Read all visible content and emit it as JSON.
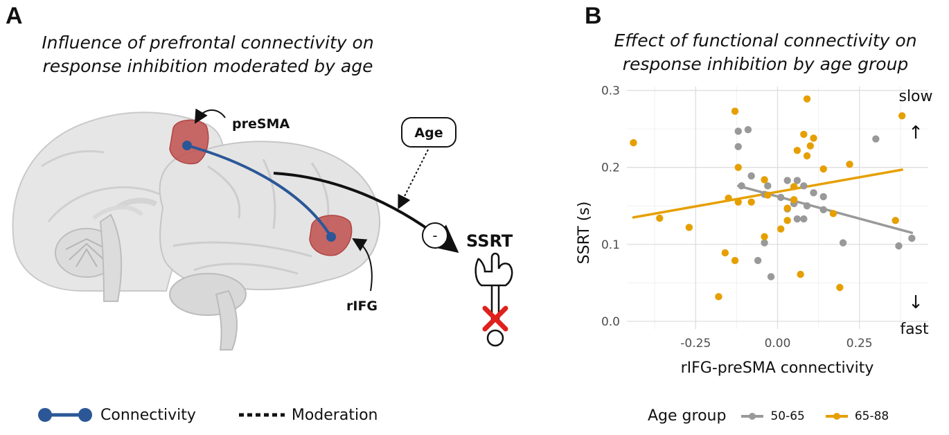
{
  "panel_a": {
    "letter": "A",
    "title_line1": "Influence of prefrontal connectivity on",
    "title_line2": "response inhibition moderated by age",
    "labels": {
      "presma": "preSMA",
      "rifg": "rIFG",
      "age": "Age",
      "ssrt": "SSRT",
      "minus": "-"
    },
    "legend": {
      "connectivity": "Connectivity",
      "moderation": "Moderation"
    },
    "colors": {
      "connectivity": "#2b5797",
      "region": "#c0504d",
      "brain": "#e3e3e3",
      "stop": "#e0201c"
    }
  },
  "panel_b": {
    "letter": "B",
    "title_line1": "Effect of functional connectivity on",
    "title_line2": "response inhibition by age group",
    "annot_slow": "slow",
    "annot_fast": "fast",
    "arrow_up": "↑",
    "arrow_down": "↓",
    "legend_title": "Age group",
    "legend_items": [
      "50-65",
      "65-88"
    ]
  },
  "chart_data": {
    "type": "scatter",
    "title": "Effect of functional connectivity on response inhibition by age group",
    "xlabel": "rIFG-preSMA connectivity",
    "ylabel": "SSRT (s)",
    "xlim": [
      -0.46,
      0.46
    ],
    "ylim": [
      -0.01,
      0.305
    ],
    "xticks": [
      -0.25,
      0.0,
      0.25
    ],
    "xtick_labels": [
      "-0.25",
      "0.00",
      "0.25"
    ],
    "yticks": [
      0.0,
      0.1,
      0.2,
      0.3
    ],
    "ytick_labels": [
      "0.0",
      "0.1",
      "0.2",
      "0.3"
    ],
    "grid": true,
    "legend_position": "bottom",
    "series": [
      {
        "name": "50-65",
        "color": "#999999",
        "x": [
          -0.12,
          -0.09,
          -0.12,
          -0.08,
          -0.11,
          -0.03,
          0.01,
          0.03,
          0.05,
          0.03,
          0.06,
          0.09,
          0.08,
          0.11,
          0.14,
          0.14,
          0.06,
          0.08,
          -0.06,
          -0.04,
          -0.02,
          0.2,
          0.3,
          0.37,
          0.41,
          -0.04
        ],
        "y": [
          0.247,
          0.249,
          0.227,
          0.189,
          0.176,
          0.176,
          0.161,
          0.146,
          0.153,
          0.183,
          0.133,
          0.15,
          0.133,
          0.167,
          0.162,
          0.145,
          0.183,
          0.176,
          0.079,
          0.102,
          0.058,
          0.102,
          0.237,
          0.098,
          0.108,
          0.165
        ],
        "fit": {
          "x": [
            -0.12,
            0.41
          ],
          "y": [
            0.176,
            0.115
          ]
        }
      },
      {
        "name": "65-88",
        "color": "#e69f00",
        "x": [
          -0.44,
          -0.36,
          -0.27,
          -0.18,
          -0.16,
          -0.15,
          -0.13,
          -0.13,
          -0.12,
          -0.12,
          -0.08,
          -0.04,
          -0.04,
          0.01,
          0.03,
          0.03,
          0.05,
          0.06,
          0.07,
          0.08,
          0.09,
          0.1,
          0.11,
          0.14,
          0.17,
          0.19,
          0.22,
          0.09,
          0.36,
          0.38,
          -0.03,
          0.05
        ],
        "y": [
          0.232,
          0.134,
          0.122,
          0.032,
          0.089,
          0.16,
          0.273,
          0.079,
          0.155,
          0.2,
          0.155,
          0.184,
          0.11,
          0.12,
          0.131,
          0.147,
          0.175,
          0.222,
          0.061,
          0.243,
          0.215,
          0.228,
          0.238,
          0.198,
          0.14,
          0.044,
          0.204,
          0.289,
          0.131,
          0.267,
          0.164,
          0.158
        ],
        "fit": {
          "x": [
            -0.44,
            0.38
          ],
          "y": [
            0.135,
            0.197
          ]
        }
      }
    ]
  }
}
